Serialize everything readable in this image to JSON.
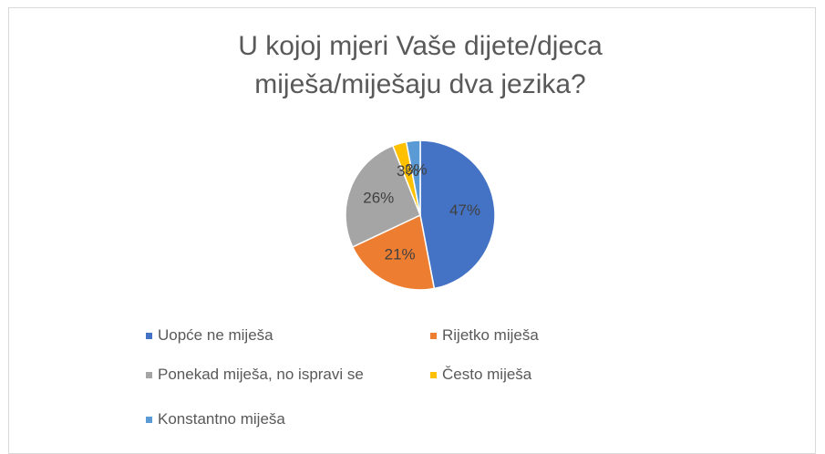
{
  "chart_data": {
    "type": "pie",
    "title": "U kojoj mjeri Vaše dijete/djeca miješa/miješaju dva jezika?",
    "categories": [
      "Uopće ne miješa",
      "Rijetko miješa",
      "Ponekad miješa, no ispravi se",
      "Često miješa",
      "Konstantno miješa"
    ],
    "values": [
      47,
      21,
      26,
      3,
      3
    ],
    "value_labels": [
      "47%",
      "21%",
      "26%",
      "3%",
      "3%"
    ],
    "colors": [
      "#4472c4",
      "#ed7d31",
      "#a5a5a5",
      "#ffc000",
      "#5b9bd5"
    ],
    "legend": "bottom"
  }
}
